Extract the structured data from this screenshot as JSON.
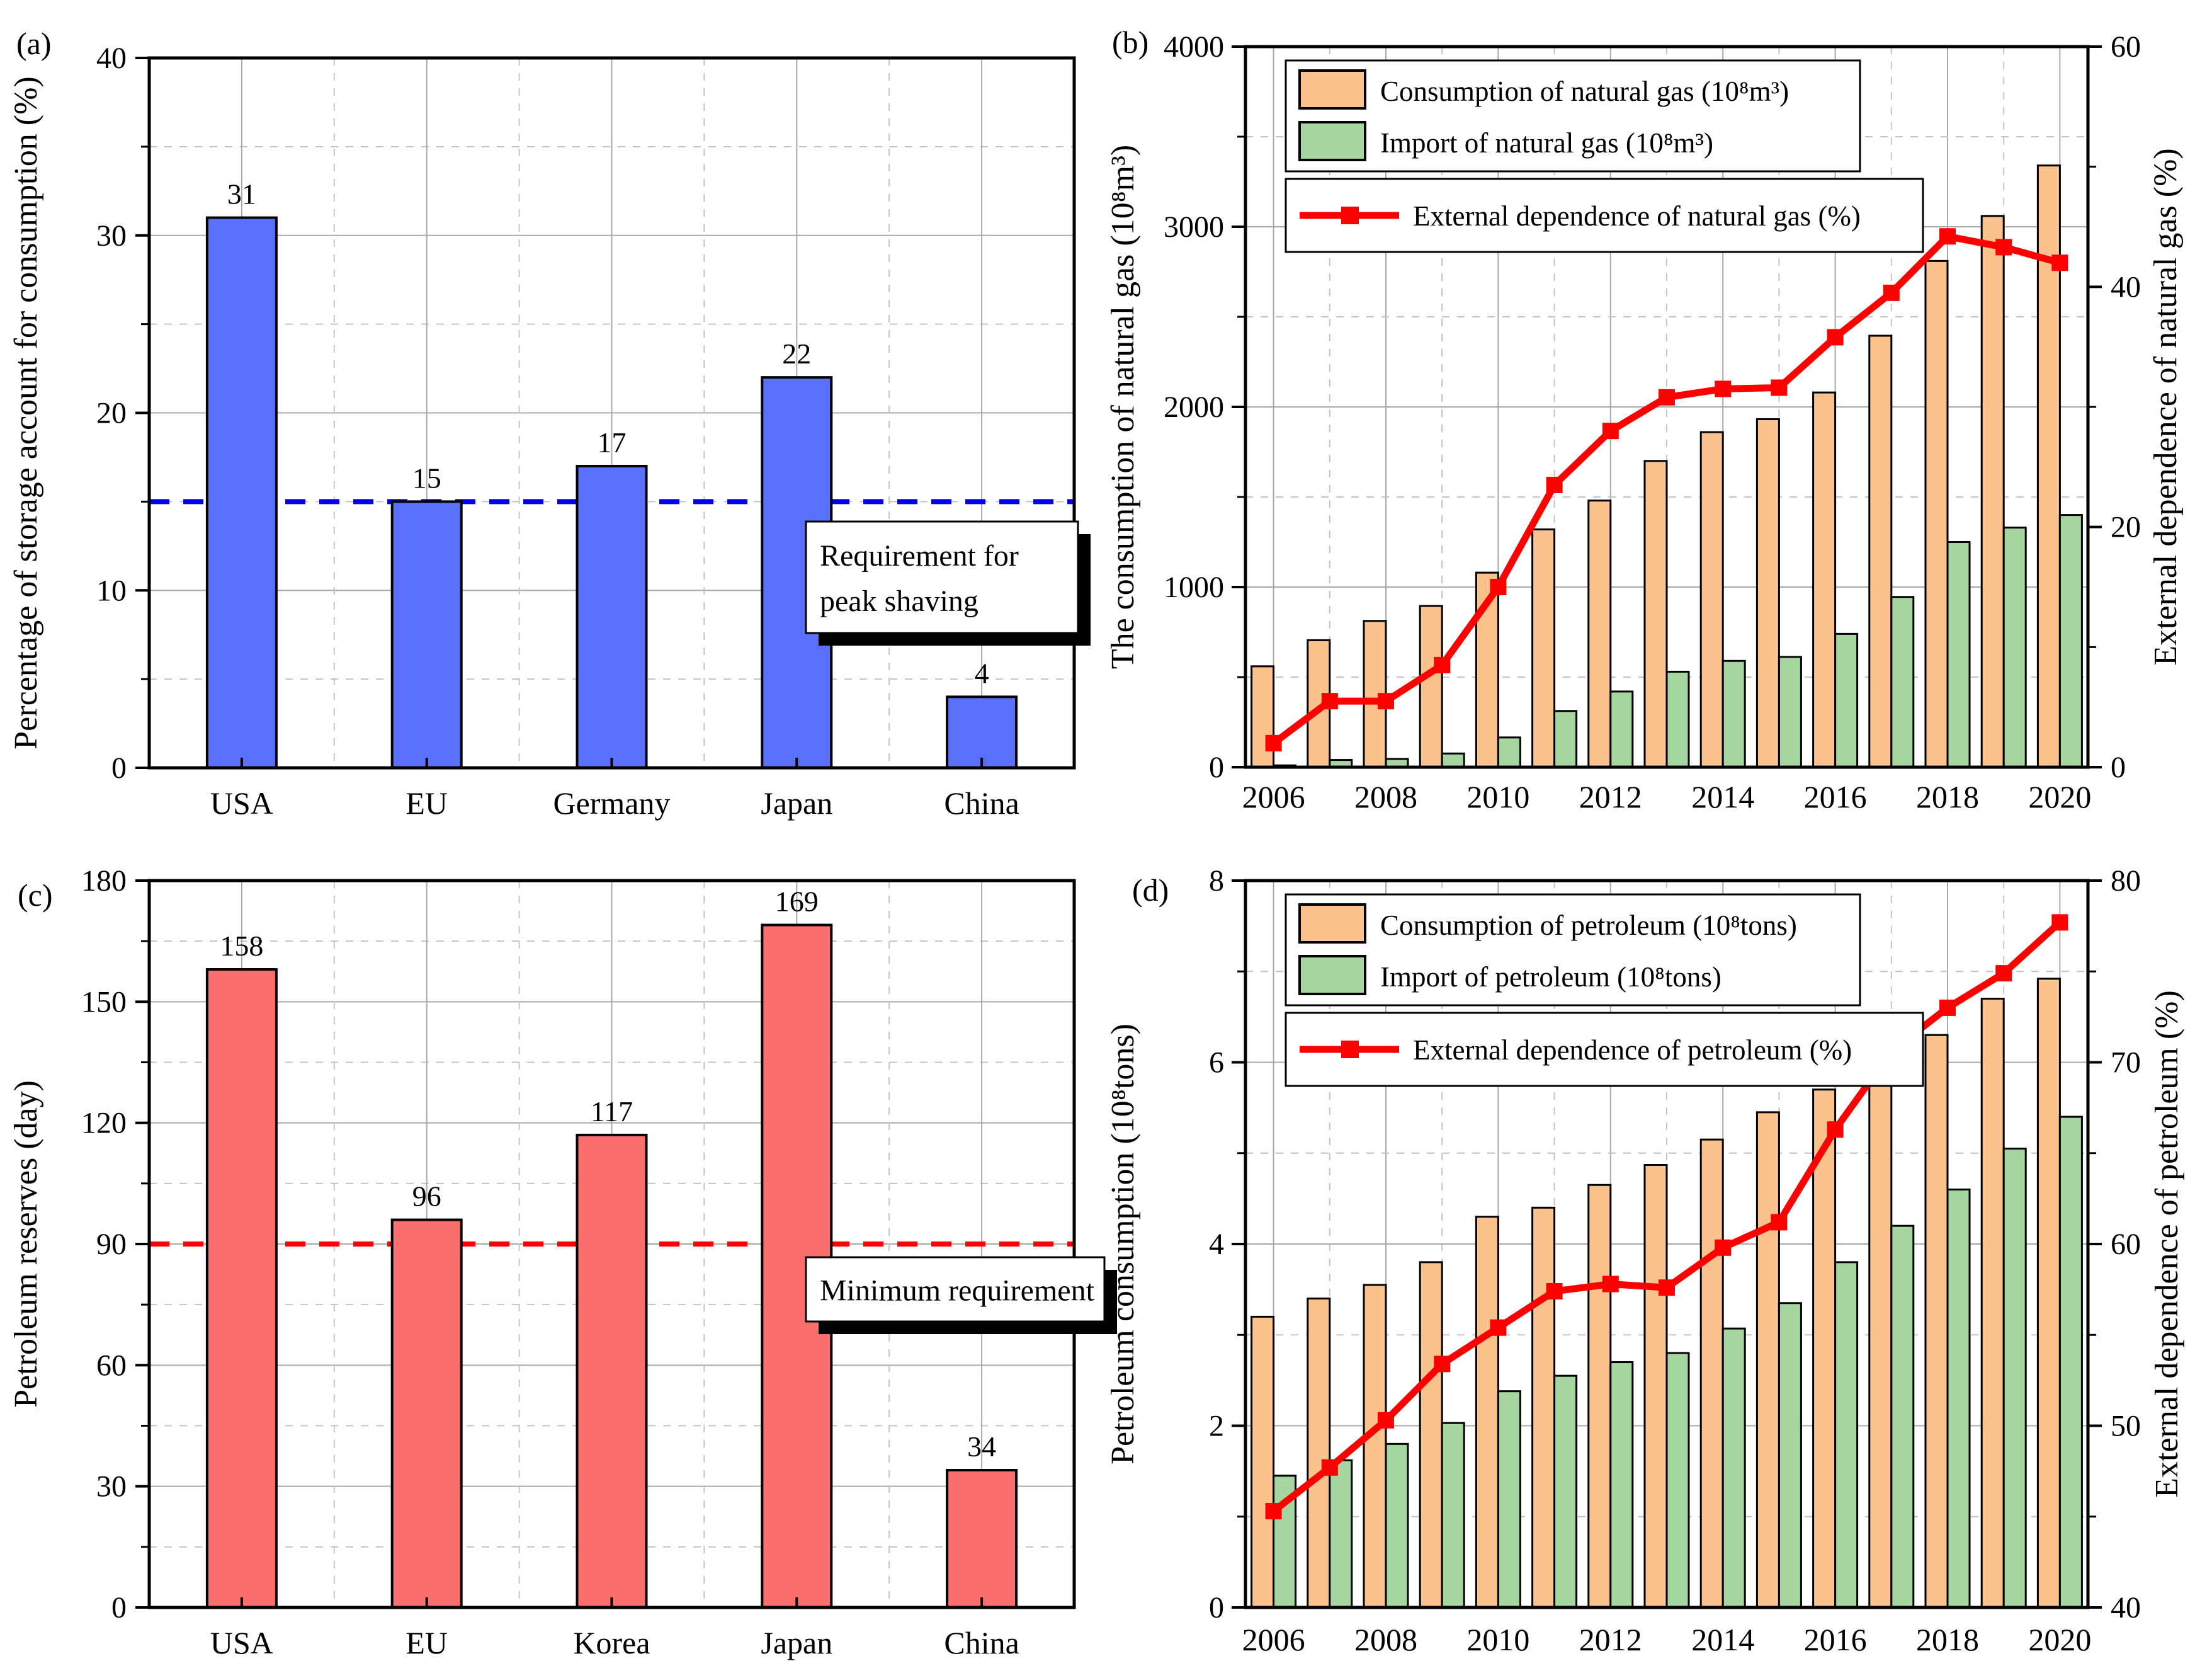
{
  "figure": {
    "description": "Four-panel energy storage and import dependence figure",
    "background": "#ffffff"
  },
  "colors": {
    "blue_bar": "#5b70fa",
    "salmon_bar": "#fa6e6e",
    "orange_bar": "#fbc28e",
    "green_bar": "#a5d6a0",
    "red_line": "#fe0000",
    "blue_ref": "#0202ee",
    "red_ref": "#fe0000",
    "grid_major": "#a8a8a8",
    "grid_minor": "#c4c4c4"
  },
  "chart_data": [
    {
      "id": "a",
      "panel_label": "(a)",
      "type": "bar",
      "ylabel": "Percentage of storage account for consumption (%)",
      "ylim": [
        0,
        40
      ],
      "ytick_step": 10,
      "yminor_step": 5,
      "categories": [
        "USA",
        "EU",
        "Germany",
        "Japan",
        "China"
      ],
      "values": [
        31,
        15,
        17,
        22,
        4
      ],
      "bar_color": "#5b70fa",
      "grid": true,
      "legend_position": "none",
      "ref_line": {
        "value": 15,
        "color": "#0202ee",
        "style": "dashed"
      },
      "annotation": {
        "lines": [
          "Requirement for",
          "peak shaving"
        ],
        "color": "#0202ee"
      }
    },
    {
      "id": "b",
      "panel_label": "(b)",
      "type": "bar+line",
      "x": [
        2006,
        2007,
        2008,
        2009,
        2010,
        2011,
        2012,
        2013,
        2014,
        2015,
        2016,
        2017,
        2018,
        2019,
        2020
      ],
      "xtick_labels": [
        "2006",
        "2008",
        "2010",
        "2012",
        "2014",
        "2016",
        "2018",
        "2020"
      ],
      "ylabel_left": "The consumption of natural gas (10⁸m³)",
      "ylim_left": [
        0,
        4000
      ],
      "ytick_step_left": 1000,
      "yminor_step_left": 500,
      "ylabel_right": "External dependence of natural gas (%)",
      "ylim_right": [
        0,
        60
      ],
      "ytick_step_right": 20,
      "yminor_step_right": 10,
      "grid": true,
      "legend_position": "top-left",
      "series": [
        {
          "name": "Consumption of natural gas (10⁸m³)",
          "kind": "bar",
          "axis": "left",
          "color": "#fbc28e",
          "values": [
            560,
            705,
            812,
            895,
            1080,
            1320,
            1480,
            1700,
            1860,
            1932,
            2080,
            2395,
            2810,
            3060,
            3340
          ]
        },
        {
          "name": "Import of natural gas (10⁸m³)",
          "kind": "bar",
          "axis": "left",
          "color": "#a5d6a0",
          "values": [
            10,
            40,
            46,
            76,
            165,
            312,
            420,
            530,
            590,
            612,
            740,
            945,
            1250,
            1330,
            1400
          ]
        },
        {
          "name": "External dependence of natural gas (%)",
          "kind": "line",
          "axis": "right",
          "color": "#fe0000",
          "values": [
            2,
            5.5,
            5.5,
            8.5,
            15,
            23.5,
            28,
            30.8,
            31.5,
            31.6,
            35.8,
            39.5,
            44.2,
            43.3,
            42
          ]
        }
      ]
    },
    {
      "id": "c",
      "panel_label": "(c)",
      "type": "bar",
      "ylabel": "Petroleum reserves (day)",
      "ylim": [
        0,
        180
      ],
      "ytick_step": 30,
      "yminor_step": 15,
      "categories": [
        "USA",
        "EU",
        "Korea",
        "Japan",
        "China"
      ],
      "values": [
        158,
        96,
        117,
        169,
        34
      ],
      "bar_color": "#fa6e6e",
      "grid": true,
      "legend_position": "none",
      "ref_line": {
        "value": 90,
        "color": "#fe0000",
        "style": "dashed"
      },
      "annotation": {
        "lines": [
          "Minimum requirement"
        ],
        "color": "#fe0000"
      }
    },
    {
      "id": "d",
      "panel_label": "(d)",
      "type": "bar+line",
      "x": [
        2006,
        2007,
        2008,
        2009,
        2010,
        2011,
        2012,
        2013,
        2014,
        2015,
        2016,
        2017,
        2018,
        2019,
        2020
      ],
      "xtick_labels": [
        "2006",
        "2008",
        "2010",
        "2012",
        "2014",
        "2016",
        "2018",
        "2020"
      ],
      "ylabel_left": "Petroleum consumption (10⁸tons)",
      "ylim_left": [
        0,
        8
      ],
      "ytick_step_left": 2,
      "yminor_step_left": 1,
      "ylabel_right": "External dependence of petroleum (%)",
      "ylim_right": [
        40,
        80
      ],
      "ytick_step_right": 10,
      "yminor_step_right": 5,
      "grid": true,
      "legend_position": "top-left",
      "series": [
        {
          "name": "Consumption of petroleum (10⁸tons)",
          "kind": "bar",
          "axis": "left",
          "color": "#fbc28e",
          "values": [
            3.2,
            3.4,
            3.55,
            3.8,
            4.3,
            4.4,
            4.65,
            4.87,
            5.15,
            5.45,
            5.7,
            5.95,
            6.3,
            6.7,
            6.92
          ]
        },
        {
          "name": "Import of petroleum (10⁸tons)",
          "kind": "bar",
          "axis": "left",
          "color": "#a5d6a0",
          "values": [
            1.45,
            1.62,
            1.8,
            2.03,
            2.38,
            2.55,
            2.7,
            2.8,
            3.07,
            3.35,
            3.8,
            4.2,
            4.6,
            5.05,
            5.4
          ]
        },
        {
          "name": "External dependence of petroleum (%)",
          "kind": "line",
          "axis": "right",
          "color": "#fe0000",
          "values": [
            45.3,
            47.7,
            50.3,
            53.4,
            55.4,
            57.4,
            57.8,
            57.6,
            59.8,
            61.2,
            66.3,
            70.6,
            73,
            74.9,
            77.7
          ]
        }
      ]
    }
  ]
}
